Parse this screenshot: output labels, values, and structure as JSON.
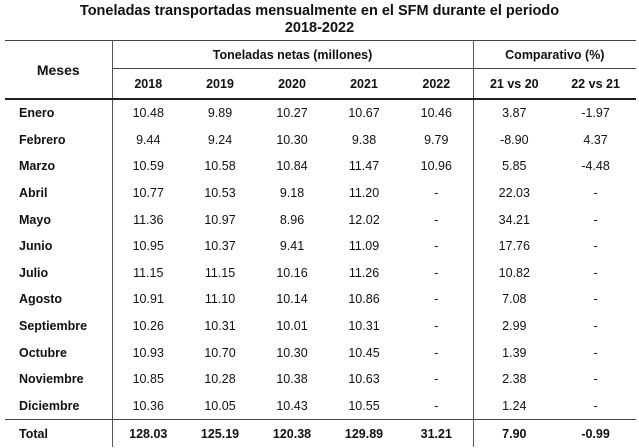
{
  "title_line1": "Toneladas transportadas mensualmente en el SFM durante el periodo",
  "title_line2": "2018-2022",
  "headers": {
    "meses": "Meses",
    "group_tons": "Toneladas netas (millones)",
    "group_comp": "Comparativo (%)",
    "years": [
      "2018",
      "2019",
      "2020",
      "2021",
      "2022"
    ],
    "comps": [
      "21 vs 20",
      "22 vs 21"
    ]
  },
  "rows": [
    {
      "mes": "Enero",
      "v": [
        "10.48",
        "9.89",
        "10.27",
        "10.67",
        "10.46",
        "3.87",
        "-1.97"
      ]
    },
    {
      "mes": "Febrero",
      "v": [
        "9.44",
        "9.24",
        "10.30",
        "9.38",
        "9.79",
        "-8.90",
        "4.37"
      ]
    },
    {
      "mes": "Marzo",
      "v": [
        "10.59",
        "10.58",
        "10.84",
        "11.47",
        "10.96",
        "5.85",
        "-4.48"
      ]
    },
    {
      "mes": "Abril",
      "v": [
        "10.77",
        "10.53",
        "9.18",
        "11.20",
        "-",
        "22.03",
        "-"
      ]
    },
    {
      "mes": "Mayo",
      "v": [
        "11.36",
        "10.97",
        "8.96",
        "12.02",
        "-",
        "34.21",
        "-"
      ]
    },
    {
      "mes": "Junio",
      "v": [
        "10.95",
        "10.37",
        "9.41",
        "11.09",
        "-",
        "17.76",
        "-"
      ]
    },
    {
      "mes": "Julio",
      "v": [
        "11.15",
        "11.15",
        "10.16",
        "11.26",
        "-",
        "10.82",
        "-"
      ]
    },
    {
      "mes": "Agosto",
      "v": [
        "10.91",
        "11.10",
        "10.14",
        "10.86",
        "-",
        "7.08",
        "-"
      ]
    },
    {
      "mes": "Septiembre",
      "v": [
        "10.26",
        "10.31",
        "10.01",
        "10.31",
        "-",
        "2.99",
        "-"
      ]
    },
    {
      "mes": "Octubre",
      "v": [
        "10.93",
        "10.70",
        "10.30",
        "10.45",
        "-",
        "1.39",
        "-"
      ]
    },
    {
      "mes": "Noviembre",
      "v": [
        "10.85",
        "10.28",
        "10.38",
        "10.63",
        "-",
        "2.38",
        "-"
      ]
    },
    {
      "mes": "Diciembre",
      "v": [
        "10.36",
        "10.05",
        "10.43",
        "10.55",
        "-",
        "1.24",
        "-"
      ]
    }
  ],
  "total": {
    "mes": "Total",
    "v": [
      "128.03",
      "125.19",
      "120.38",
      "129.89",
      "31.21",
      "7.90",
      "-0.99"
    ]
  }
}
